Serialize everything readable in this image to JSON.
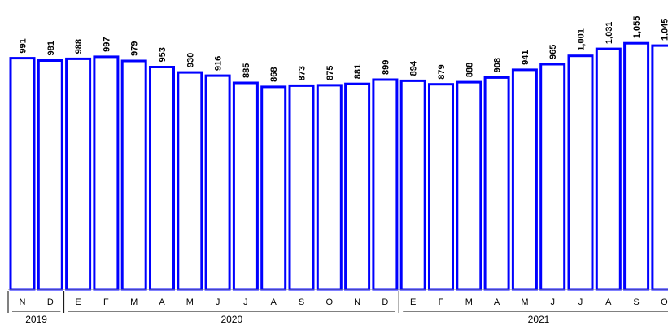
{
  "chart_data": {
    "type": "bar",
    "title": "",
    "xlabel": "",
    "ylabel": "",
    "categories": [
      "N",
      "D",
      "E",
      "F",
      "M",
      "A",
      "M",
      "J",
      "J",
      "A",
      "S",
      "O",
      "N",
      "D",
      "E",
      "F",
      "M",
      "A",
      "M",
      "J",
      "J",
      "A",
      "S",
      "O"
    ],
    "values": [
      991,
      981,
      988,
      997,
      979,
      953,
      930,
      916,
      885,
      868,
      873,
      875,
      881,
      899,
      894,
      879,
      888,
      908,
      941,
      965,
      1001,
      1031,
      1055,
      1045
    ],
    "value_labels": [
      "991",
      "981",
      "988",
      "997",
      "979",
      "953",
      "930",
      "916",
      "885",
      "868",
      "873",
      "875",
      "881",
      "899",
      "894",
      "879",
      "888",
      "908",
      "941",
      "965",
      "1,001",
      "1,031",
      "1,055",
      "1,045"
    ],
    "year_groups": [
      {
        "label": "2019",
        "start": 0,
        "end": 1
      },
      {
        "label": "2020",
        "start": 2,
        "end": 13
      },
      {
        "label": "2021",
        "start": 14,
        "end": 23
      }
    ],
    "ylim": [
      0,
      1080
    ],
    "grid": false,
    "legend": "none",
    "colors": {
      "bar_stroke": "#0000ff",
      "bar_fill": "#ffffff"
    }
  }
}
